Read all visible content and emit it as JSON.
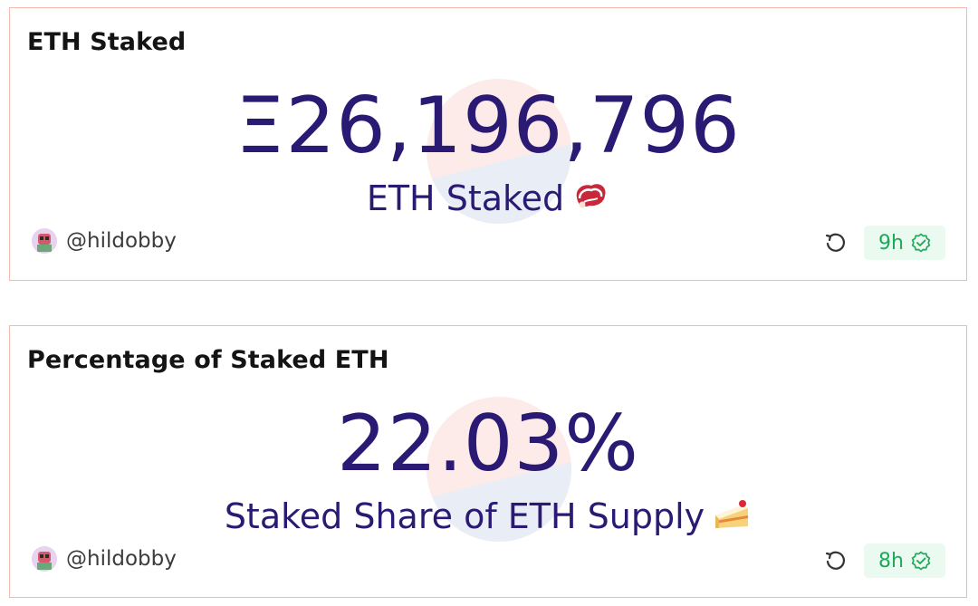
{
  "cards": [
    {
      "title": "ETH Staked",
      "value": "Ξ26,196,796",
      "subtitle": "ETH Staked",
      "subtitle_emoji": "steak-icon",
      "author": "@hildobby",
      "age": "9h"
    },
    {
      "title": "Percentage of Staked ETH",
      "value": "22.03%",
      "subtitle": "Staked Share of ETH Supply",
      "subtitle_emoji": "cake-icon",
      "author": "@hildobby",
      "age": "8h"
    }
  ],
  "colors": {
    "value_text": "#2a1a73",
    "card_border": "#f2b9ac",
    "badge_bg": "#eafaf0",
    "badge_text": "#1fa85a"
  }
}
